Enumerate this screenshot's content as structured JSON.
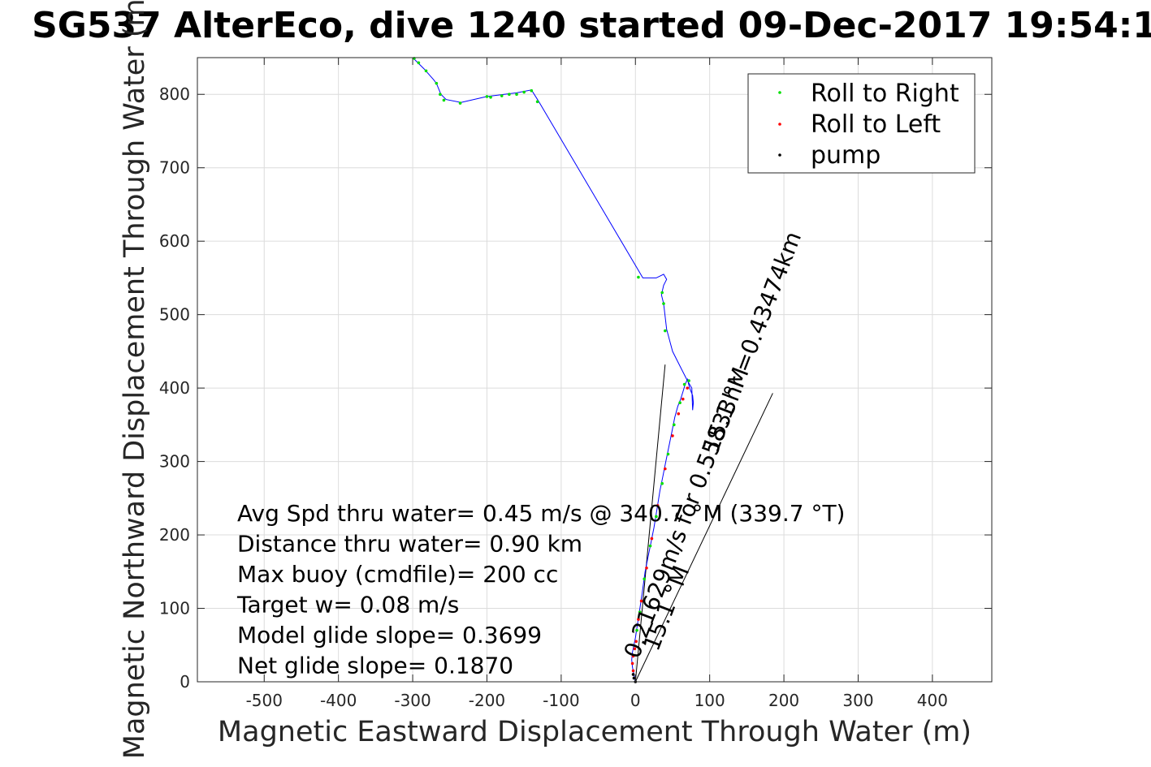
{
  "chart_data": {
    "type": "line",
    "title": "SG537 AlterEco, dive 1240 started 09-Dec-2017 19:54:1",
    "xlabel": "Magnetic Eastward Displacement Through Water (m)",
    "ylabel": "Magnetic Northward Displacement Through Water (m)",
    "xlim": [
      -590,
      480
    ],
    "ylim": [
      0,
      850
    ],
    "xticks": [
      -500,
      -400,
      -300,
      -200,
      -100,
      0,
      100,
      200,
      300,
      400
    ],
    "yticks": [
      0,
      100,
      200,
      300,
      400,
      500,
      600,
      700,
      800
    ],
    "xtick_labels": [
      "-500",
      "-400",
      "-300",
      "-200",
      "-100",
      "0",
      "100",
      "200",
      "300",
      "400"
    ],
    "ytick_labels": [
      "0",
      "100",
      "200",
      "300",
      "400",
      "500",
      "600",
      "700",
      "800"
    ],
    "grid": true,
    "legend_position": "top-right",
    "legend": [
      {
        "label": "Roll to Right",
        "color": "#00e000",
        "marker": "dot"
      },
      {
        "label": "Roll to Left",
        "color": "#ff0000",
        "marker": "dot"
      },
      {
        "label": "pump",
        "color": "#000000",
        "marker": "dot"
      }
    ],
    "track_color": "#0000ff",
    "track": {
      "x": [
        0,
        -2,
        -4,
        -5,
        -4,
        -2,
        0,
        3,
        6,
        9,
        13,
        17,
        21,
        25,
        29,
        33,
        37,
        41,
        45,
        49,
        53,
        57,
        61,
        64,
        67,
        70,
        73,
        75,
        77,
        78,
        77,
        76,
        70,
        60,
        50,
        42,
        38,
        35,
        38,
        42,
        38,
        28,
        10,
        -130,
        -140,
        -160,
        -200,
        -235,
        -255,
        -262,
        -268,
        -272,
        -285,
        -295,
        -300
      ],
      "y": [
        0,
        10,
        20,
        30,
        40,
        50,
        60,
        80,
        100,
        120,
        150,
        170,
        190,
        210,
        235,
        260,
        280,
        300,
        320,
        340,
        360,
        375,
        385,
        395,
        405,
        412,
        400,
        395,
        390,
        380,
        370,
        400,
        410,
        430,
        450,
        480,
        515,
        527,
        540,
        548,
        555,
        550,
        550,
        790,
        806,
        802,
        797,
        789,
        793,
        800,
        815,
        820,
        835,
        845,
        850
      ]
    },
    "roll_right_points": {
      "x": [
        2,
        6,
        12,
        20,
        28,
        36,
        44,
        52,
        60,
        66,
        72,
        38,
        36,
        40,
        4,
        -132,
        -140,
        -150,
        -160,
        -170,
        -180,
        -195,
        -200,
        -236,
        -258,
        -263,
        -268,
        -282,
        -292,
        -298
      ],
      "y": [
        70,
        95,
        140,
        185,
        225,
        270,
        310,
        350,
        380,
        405,
        410,
        515,
        530,
        478,
        551,
        790,
        805,
        803,
        800,
        800,
        798,
        796,
        797,
        788,
        792,
        800,
        815,
        832,
        843,
        849
      ]
    },
    "roll_left_points": {
      "x": [
        -3,
        -4,
        -3,
        -1,
        1,
        4,
        8,
        15,
        22,
        30,
        40,
        50,
        58,
        64,
        70
      ],
      "y": [
        15,
        25,
        35,
        45,
        55,
        85,
        110,
        155,
        195,
        240,
        290,
        335,
        365,
        385,
        400
      ]
    },
    "pump_points": {
      "x": [
        0,
        -2,
        -3
      ],
      "y": [
        0,
        5,
        10
      ]
    },
    "reference_lines": [
      {
        "x": [
          0,
          40
        ],
        "y": [
          0,
          432
        ]
      },
      {
        "x": [
          0,
          185
        ],
        "y": [
          0,
          393
        ]
      }
    ],
    "annotations": [
      {
        "text": "0.21629m/s for 0.55833hr =0.43474km",
        "x": 4,
        "y": 30,
        "angle_deg": -69
      },
      {
        "text": "15.1 °M",
        "x": 30,
        "y": 40,
        "angle_deg": -69
      },
      {
        "text": "15.1 °M",
        "x": 110,
        "y": 310,
        "angle_deg": -69
      }
    ],
    "stats": [
      "Avg Spd thru water=  0.45 m/s @ 340.7 °M (339.7 °T)",
      "Distance thru water=  0.90 km",
      "Max buoy (cmdfile)= 200 cc",
      "Target w= 0.08 m/s",
      "Model glide slope= 0.3699",
      "Net glide slope= 0.1870"
    ]
  }
}
